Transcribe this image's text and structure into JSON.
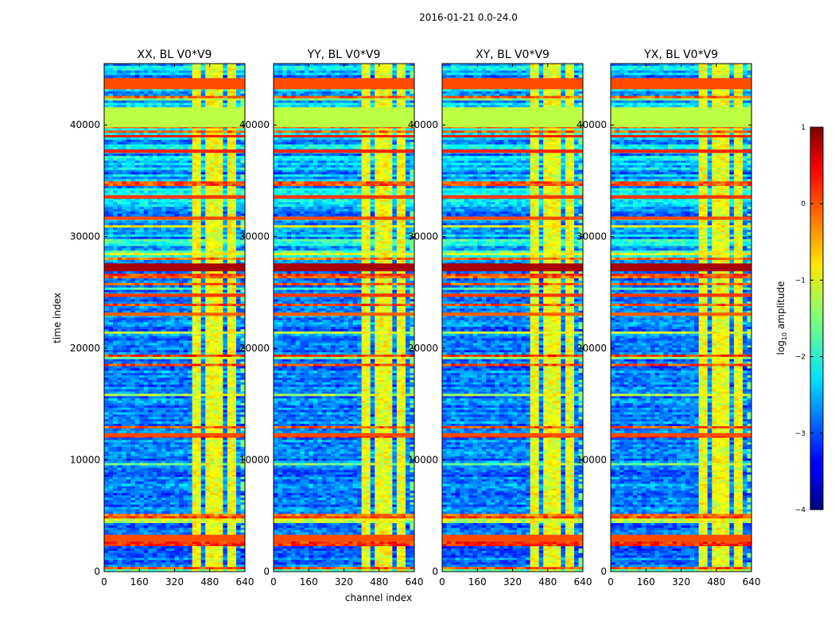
{
  "chart_data": {
    "type": "heatmap",
    "suptitle": "2016-01-21 0.0-24.0",
    "xlabel": "channel index",
    "ylabel": "time index",
    "xlim": [
      0,
      640
    ],
    "ylim": [
      0,
      45500
    ],
    "xticks": [
      0,
      160,
      320,
      480,
      640
    ],
    "yticks": [
      0,
      10000,
      20000,
      30000,
      40000
    ],
    "colorbar": {
      "label": "log",
      "label_sub": "10",
      "label_rest": " amplitude",
      "range": [
        -4,
        1
      ],
      "ticks": [
        1,
        0,
        -1,
        -2,
        -3,
        -4
      ],
      "tick_labels": [
        "1",
        "0",
        "−1",
        "−2",
        "−3",
        "−4"
      ],
      "colormap": "jet"
    },
    "panels": [
      {
        "title": "XX, BL V0*V9",
        "pol": "XX"
      },
      {
        "title": "YY, BL V0*V9",
        "pol": "YY"
      },
      {
        "title": "XY, BL V0*V9",
        "pol": "XY"
      },
      {
        "title": "YX, BL V0*V9",
        "pol": "YX"
      }
    ],
    "bright_channel_bands": [
      [
        405,
        445
      ],
      [
        455,
        500
      ],
      [
        505,
        545
      ],
      [
        555,
        595
      ]
    ],
    "flagged_time_bands": [
      {
        "start": 39800,
        "end": 41600,
        "value": -1.2
      },
      {
        "start": 43200,
        "end": 44200,
        "value": 0.0
      },
      {
        "start": 26900,
        "end": 27600,
        "value": 0.8
      },
      {
        "start": 2700,
        "end": 3300,
        "value": 0.0
      },
      {
        "start": 22900,
        "end": 23200,
        "value": -0.1
      },
      {
        "start": 31500,
        "end": 31800,
        "value": 0.0
      },
      {
        "start": 33400,
        "end": 33700,
        "value": 0.1
      },
      {
        "start": 37500,
        "end": 37800,
        "value": 0.2
      },
      {
        "start": 12100,
        "end": 12400,
        "value": 0.0
      },
      {
        "start": 38900,
        "end": 39100,
        "value": 0.3
      },
      {
        "start": 24600,
        "end": 24900,
        "value": 0.1
      }
    ]
  }
}
